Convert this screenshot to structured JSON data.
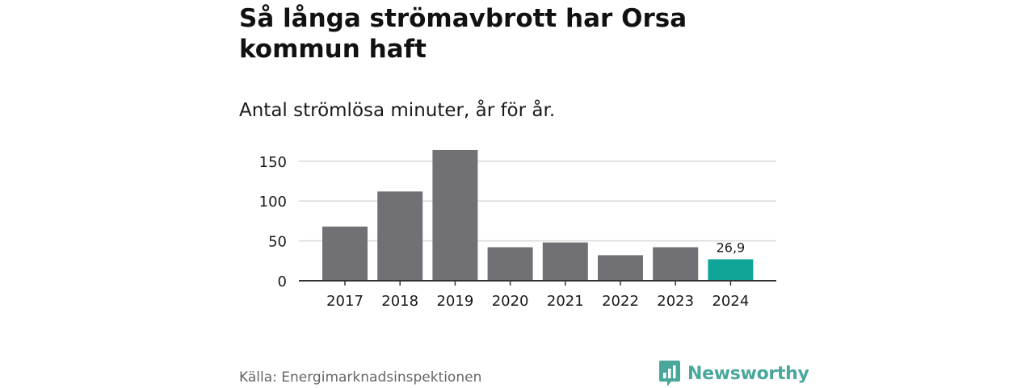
{
  "header": {
    "title": "Så långa strömavbrott har Orsa kommun haft",
    "subtitle": "Antal strömlösa minuter, år för år."
  },
  "chart_data": {
    "type": "bar",
    "categories": [
      "2017",
      "2018",
      "2019",
      "2020",
      "2021",
      "2022",
      "2023",
      "2024"
    ],
    "values": [
      68,
      112,
      164,
      42,
      48,
      32,
      42,
      26.9
    ],
    "ylim": [
      0,
      165
    ],
    "yticks": [
      0,
      50,
      100,
      150
    ],
    "grid": true,
    "bar_color": "#717074",
    "highlight_color": "#10a597",
    "highlight_index": 7,
    "data_labels": [
      {
        "index": 7,
        "text": "26,9"
      }
    ]
  },
  "footer": {
    "source": "Källa: Energimarknadsinspektionen",
    "brand_name": "Newsworthy",
    "brand_icon": "bar-chart-speech-bubble-icon",
    "brand_color": "#4aa79b"
  }
}
